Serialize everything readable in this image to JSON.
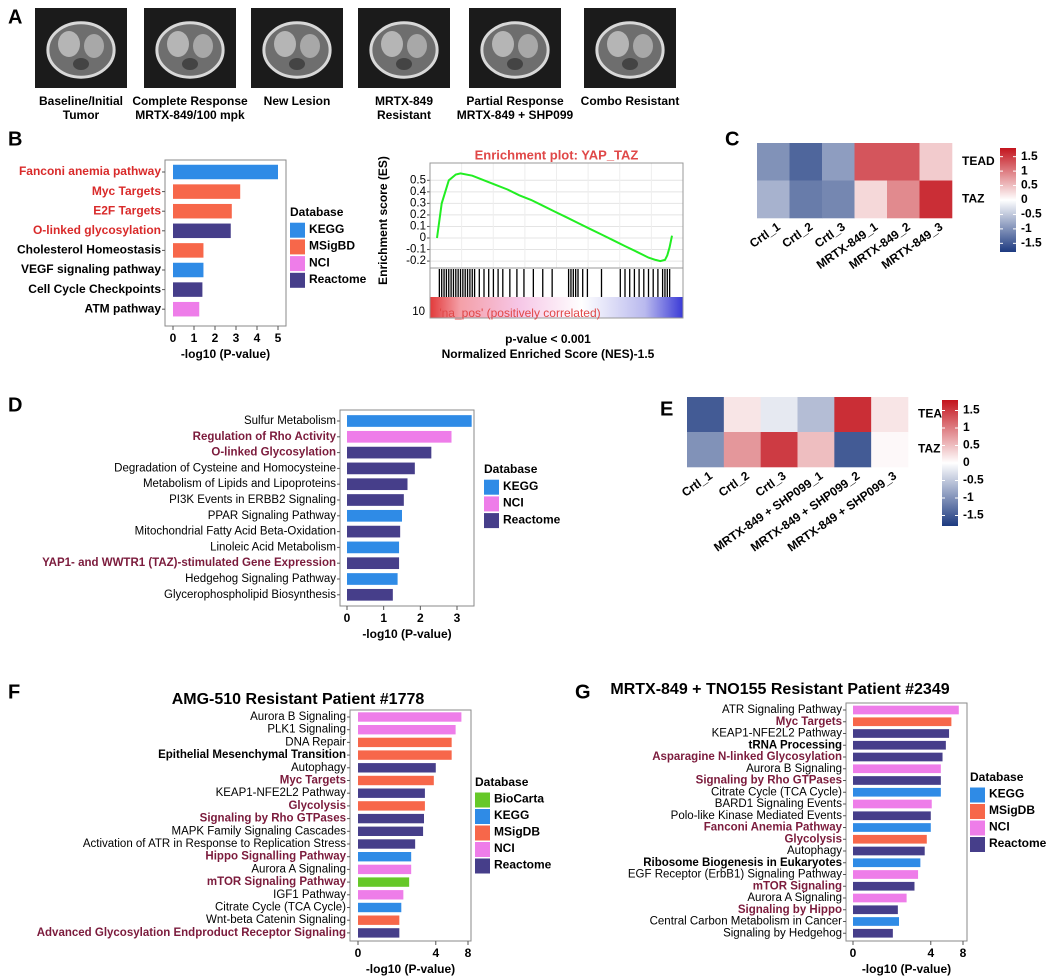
{
  "chart_data": [
    {
      "panel": "A",
      "type": "images",
      "captions": [
        [
          "Baseline/Initial",
          "Tumor"
        ],
        [
          "Complete Response",
          "MRTX-849/100 mpk"
        ],
        [
          "New Lesion"
        ],
        [
          "MRTX-849",
          "Resistant"
        ],
        [
          "Partial Response",
          "MRTX-849 + SHP099"
        ],
        [
          "Combo Resistant"
        ]
      ]
    },
    {
      "panel": "B",
      "type": "barh",
      "categories": [
        "Fanconi anemia pathway",
        "Myc Targets",
        "E2F Targets",
        "O-linked glycosylation",
        "Cholesterol Homeostasis",
        "VEGF signaling pathway",
        "Cell Cycle Checkpoints",
        "ATM pathway"
      ],
      "values": [
        5.0,
        3.2,
        2.8,
        2.75,
        1.45,
        1.45,
        1.4,
        1.25
      ],
      "groups": [
        "KEGG",
        "MSigBD",
        "MSigBD",
        "Reactome",
        "MSigBD",
        "KEGG",
        "Reactome",
        "NCI"
      ],
      "label_styles": [
        "highlight",
        "highlight",
        "highlight",
        "highlight",
        "bold",
        "bold",
        "bold",
        "bold"
      ],
      "highlight_color": "#d92a2a",
      "xlabel": "-log10 (P-value)",
      "xlim": [
        0,
        5
      ],
      "xticks": [
        0,
        1,
        2,
        3,
        4,
        5
      ],
      "scale": "linear",
      "legend": {
        "title": "Database",
        "items": [
          {
            "name": "KEGG",
            "color": "#2f8be6"
          },
          {
            "name": "MSigBD",
            "color": "#f7674a"
          },
          {
            "name": "NCI",
            "color": "#ee7de9"
          },
          {
            "name": "Reactome",
            "color": "#463e8a"
          }
        ]
      }
    },
    {
      "type": "gsea",
      "title": "Enrichment plot: YAP_TAZ",
      "ylabel": "Enrichment score (ES)",
      "x": [
        0,
        2,
        5,
        8,
        10,
        15,
        20,
        25,
        30,
        35,
        40,
        45,
        50,
        55,
        60,
        65,
        70,
        75,
        80,
        85,
        90,
        93,
        95,
        97,
        98,
        99,
        100
      ],
      "values": [
        0,
        0.3,
        0.5,
        0.55,
        0.56,
        0.54,
        0.5,
        0.46,
        0.42,
        0.37,
        0.33,
        0.28,
        0.23,
        0.18,
        0.13,
        0.08,
        0.03,
        -0.02,
        -0.07,
        -0.12,
        -0.17,
        -0.19,
        -0.2,
        -0.19,
        -0.15,
        -0.08,
        0.02
      ],
      "color": "#22ee22",
      "hits": [
        1,
        2,
        3,
        4,
        5,
        6,
        7,
        8,
        9,
        10,
        11,
        12,
        13,
        14,
        15,
        16,
        18,
        20,
        22,
        24,
        26,
        28,
        31,
        34,
        37,
        41,
        45,
        49,
        56,
        57,
        58,
        59,
        60,
        62,
        64,
        70,
        78,
        80,
        82,
        84,
        86,
        88,
        90,
        92,
        94,
        96,
        97,
        98,
        99
      ],
      "xlim": [
        0,
        100
      ],
      "ylim": [
        -0.26,
        0.65
      ],
      "yticks": [
        0.5,
        0.4,
        0.3,
        0.2,
        0.1,
        0,
        -0.1,
        -0.2
      ],
      "rank_yticks": [
        10
      ],
      "rank_label": "'na_pos' (positively correlated)",
      "notes": [
        "p-value < 0.001",
        "Normalized Enriched Score (NES)-1.5"
      ],
      "grid": true
    },
    {
      "panel": "C",
      "type": "heatmap",
      "rows": [
        "TEAD",
        "TAZ"
      ],
      "columns": [
        "Crtl_1",
        "Crtl_2",
        "Crtl_3",
        "MRTX-849_1",
        "MRTX-849_2",
        "MRTX-849_3"
      ],
      "values": [
        [
          -1.0,
          -1.4,
          -0.9,
          1.3,
          1.3,
          0.4
        ],
        [
          -0.7,
          -1.2,
          -1.1,
          0.3,
          0.9,
          1.6
        ]
      ],
      "clim": [
        -1.8,
        1.8
      ],
      "cticks": [
        1.5,
        1,
        0.5,
        0,
        -0.5,
        -1,
        -1.5
      ],
      "colors": [
        "#1d3a80",
        "#ffffff",
        "#c3141d"
      ]
    },
    {
      "panel": "D",
      "type": "barh",
      "categories": [
        "Sulfur Metabolism",
        "Regulation of Rho Activity",
        "O-linked Glycosylation",
        "Degradation of Cysteine and Homocysteine",
        "Metabolism of Lipids and Lipoproteins",
        "PI3K Events in ERBB2 Signaling",
        "PPAR Signaling Pathway",
        "Mitochondrial Fatty Acid Beta-Oxidation",
        "Linoleic Acid Metabolism",
        "YAP1- and WWTR1 (TAZ)-stimulated Gene Expression",
        "Hedgehog Signaling Pathway",
        "Glycerophospholipid Biosynthesis"
      ],
      "values": [
        3.4,
        2.85,
        2.3,
        1.85,
        1.65,
        1.55,
        1.5,
        1.45,
        1.42,
        1.42,
        1.38,
        1.25
      ],
      "groups": [
        "KEGG",
        "NCI",
        "Reactome",
        "Reactome",
        "Reactome",
        "Reactome",
        "KEGG",
        "Reactome",
        "KEGG",
        "Reactome",
        "KEGG",
        "Reactome"
      ],
      "label_styles": [
        "plain",
        "highlight",
        "highlight",
        "plain",
        "plain",
        "plain",
        "plain",
        "plain",
        "plain",
        "highlight",
        "plain",
        "plain"
      ],
      "highlight_color": "#7b1b3c",
      "xlabel": "-log10 (P-value)",
      "xlim": [
        0,
        3
      ],
      "xticks": [
        0,
        1,
        2,
        3
      ],
      "scale": "linear",
      "legend": {
        "title": "Database",
        "items": [
          {
            "name": "KEGG",
            "color": "#2f8be6"
          },
          {
            "name": "NCI",
            "color": "#ee7de9"
          },
          {
            "name": "Reactome",
            "color": "#463e8a"
          }
        ]
      }
    },
    {
      "panel": "E",
      "type": "heatmap",
      "rows": [
        "TEAD",
        "TAZ"
      ],
      "columns": [
        "Crtl_1",
        "Crtl_2",
        "Crtl_3",
        "MRTX-849 + SHP099_1",
        "MRTX-849 + SHP099_2",
        "MRTX-849 + SHP099_3"
      ],
      "values": [
        [
          -1.5,
          0.2,
          -0.2,
          -0.6,
          1.6,
          0.2
        ],
        [
          -1.0,
          0.8,
          1.5,
          0.5,
          -1.5,
          0.05
        ]
      ],
      "clim": [
        -1.8,
        1.8
      ],
      "cticks": [
        1.5,
        1,
        0.5,
        0,
        -0.5,
        -1,
        -1.5
      ],
      "colors": [
        "#1d3a80",
        "#ffffff",
        "#c3141d"
      ]
    },
    {
      "panel": "F",
      "type": "barh",
      "title": "AMG-510 Resistant Patient #1778",
      "categories": [
        "Aurora B Signaling",
        "PLK1 Signaling",
        "DNA Repair",
        "Epithelial Mesenchymal Transition",
        "Autophagy",
        "Myc Targets",
        "KEAP1-NFE2L2 Pathway",
        "Glycolysis",
        "Signaling by Rho GTPases",
        "MAPK Family Signaling Cascades",
        "Activation of ATR in Response to Replication Stress",
        "Hippo Signalling Pathway",
        "Aurora A Signaling",
        "mTOR Signaling Pathway",
        "IGF1 Pathway",
        "Citrate Cycle (TCA Cycle)",
        "Wnt-beta Catenin Signaling",
        "Advanced Glycosylation Endproduct Receptor Signaling"
      ],
      "values": [
        7.07,
        6.3,
        5.8,
        5.8,
        4.0,
        3.8,
        2.96,
        2.96,
        2.88,
        2.8,
        2.16,
        1.87,
        1.87,
        1.73,
        1.36,
        1.24,
        1.13,
        1.13
      ],
      "groups": [
        "NCI",
        "NCI",
        "MSigDB",
        "MSigDB",
        "Reactome",
        "MSigDB",
        "Reactome",
        "MSigDB",
        "Reactome",
        "Reactome",
        "Reactome",
        "KEGG",
        "NCI",
        "BioCarta",
        "NCI",
        "KEGG",
        "MSigDB",
        "Reactome"
      ],
      "label_styles": [
        "plain",
        "plain",
        "plain",
        "bold",
        "plain",
        "highlight",
        "plain",
        "highlight",
        "highlight",
        "plain",
        "plain",
        "highlight",
        "plain",
        "highlight",
        "plain",
        "plain",
        "plain",
        "highlight"
      ],
      "highlight_color": "#7b1b3c",
      "xlabel": "-log10 (P-value)",
      "xlim": [
        0,
        8
      ],
      "xticks": [
        0,
        4,
        8
      ],
      "scale": "sqrt",
      "legend": {
        "title": "Database",
        "items": [
          {
            "name": "BioCarta",
            "color": "#66c828"
          },
          {
            "name": "KEGG",
            "color": "#2f8be6"
          },
          {
            "name": "MSigDB",
            "color": "#f7674a"
          },
          {
            "name": "NCI",
            "color": "#ee7de9"
          },
          {
            "name": "Reactome",
            "color": "#463e8a"
          }
        ]
      }
    },
    {
      "panel": "G",
      "type": "barh",
      "title": "MRTX-849 + TNO155 Resistant Patient #2349",
      "categories": [
        "ATR Signaling Pathway",
        "Myc Targets",
        "KEAP1-NFE2L2 Pathway",
        "tRNA Processing",
        "Asparagine N-linked Glycosylation",
        "Aurora B Signaling",
        "Signaling by Rho GTPases",
        "Citrate Cycle (TCA Cycle)",
        "BARD1 Signaling Events",
        "Polo-like Kinase Mediated Events",
        "Fanconi Anemia Pathway",
        "Glycolysis",
        "Autophagy",
        "Ribosome Biogenesis in Eukaryotes",
        "EGF Receptor (ErbB1) Signaling Pathway",
        "mTOR Signaling",
        "Aurora A Signaling",
        "Signaling by Hippo",
        "Central Carbon Metabolism in Cancer",
        "Signaling by Hedgehog"
      ],
      "values": [
        7.4,
        6.4,
        6.1,
        5.7,
        5.3,
        5.1,
        5.1,
        5.1,
        4.1,
        4.0,
        4.0,
        3.6,
        3.4,
        3.0,
        2.8,
        2.5,
        1.9,
        1.33,
        1.4,
        1.05
      ],
      "groups": [
        "NCI",
        "MSigDB",
        "Reactome",
        "Reactome",
        "Reactome",
        "NCI",
        "Reactome",
        "KEGG",
        "NCI",
        "Reactome",
        "KEGG",
        "MSigDB",
        "Reactome",
        "KEGG",
        "NCI",
        "Reactome",
        "NCI",
        "Reactome",
        "KEGG",
        "Reactome"
      ],
      "label_styles": [
        "plain",
        "highlight",
        "plain",
        "bold",
        "highlight",
        "plain",
        "highlight",
        "plain",
        "plain",
        "plain",
        "highlight",
        "highlight",
        "plain",
        "bold",
        "plain",
        "highlight",
        "plain",
        "highlight",
        "plain",
        "plain"
      ],
      "highlight_color": "#7b1b3c",
      "xlabel": "-log10 (P-value)",
      "xlim": [
        0,
        8
      ],
      "xticks": [
        0,
        4,
        8
      ],
      "scale": "sqrt",
      "legend": {
        "title": "Database",
        "items": [
          {
            "name": "KEGG",
            "color": "#2f8be6"
          },
          {
            "name": "MSigDB",
            "color": "#f7674a"
          },
          {
            "name": "NCI",
            "color": "#ee7de9"
          },
          {
            "name": "Reactome",
            "color": "#463e8a"
          }
        ]
      }
    }
  ]
}
